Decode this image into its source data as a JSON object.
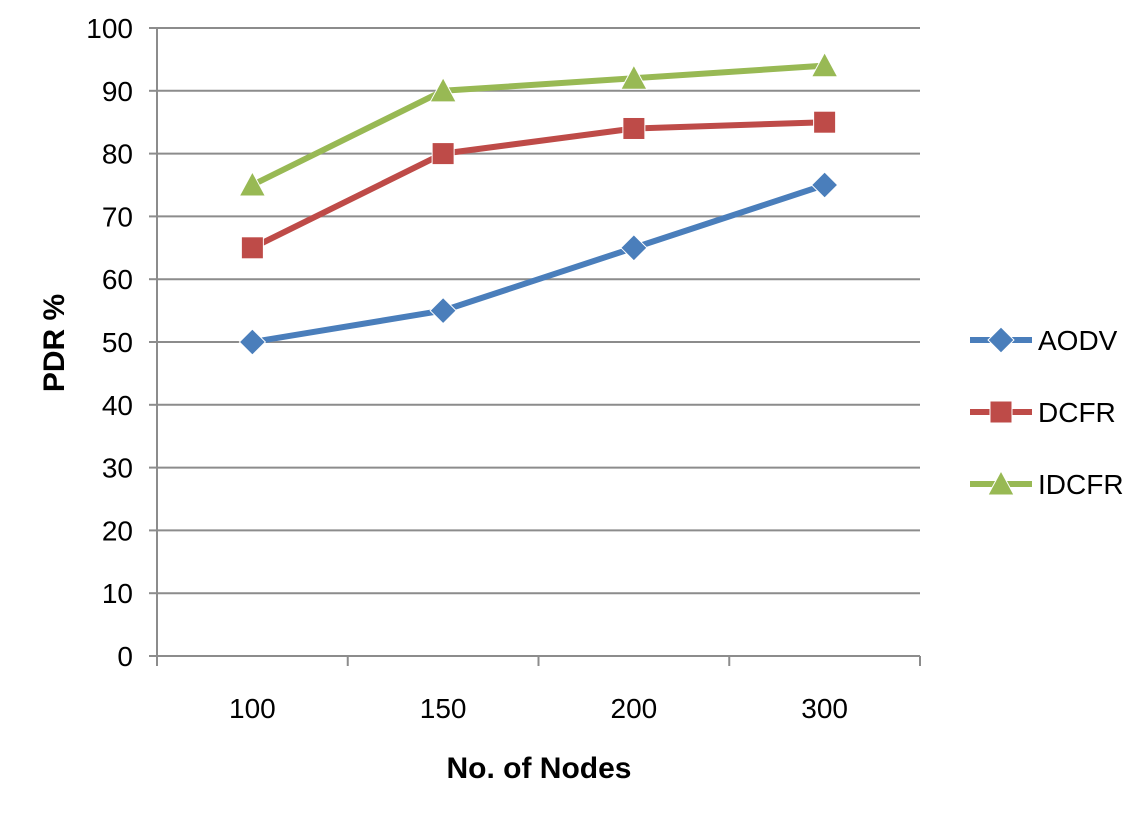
{
  "chart_data": {
    "type": "line",
    "title": "",
    "xlabel": "No. of Nodes",
    "ylabel": "PDR %",
    "categories": [
      "100",
      "150",
      "200",
      "300"
    ],
    "ylim": [
      0,
      100
    ],
    "yticks": [
      0,
      10,
      20,
      30,
      40,
      50,
      60,
      70,
      80,
      90,
      100
    ],
    "grid": "horizontal",
    "legend_position": "right",
    "series": [
      {
        "name": "AODV",
        "values": [
          50,
          55,
          65,
          75
        ],
        "color": "#4a7ebb",
        "marker": "diamond"
      },
      {
        "name": "DCFR",
        "values": [
          65,
          80,
          84,
          85
        ],
        "color": "#be4b48",
        "marker": "square"
      },
      {
        "name": "IDCFR",
        "values": [
          75,
          90,
          92,
          94
        ],
        "color": "#98b954",
        "marker": "triangle"
      }
    ]
  }
}
